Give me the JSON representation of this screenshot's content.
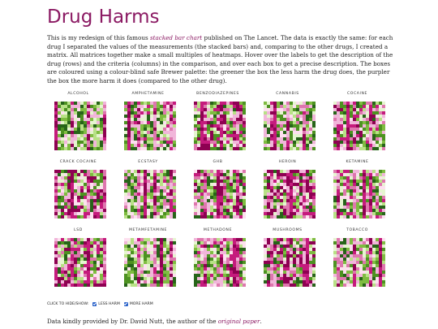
{
  "page": {
    "title": "Drug Harms",
    "intro": {
      "t1": "This is my redesign of this famous ",
      "link": "stacked bar chart",
      "t2": " published on The Lancet. The data is exactly the same: for each drug I separated the values of the measurements (the stacked bars) and, comparing to the other drugs, I created a matrix. All matrices together make a small multiples of heatmaps. Hover over the labels to get the description of the drug (rows) and the criteria (columns) in the comparison, and over each box to get a precise description. The boxes are coloured using a colour-blind safe Brewer palette: the greener the box the less harm the drug does, the purpler the box the more harm it does (compared to the other drug)."
    },
    "controls": {
      "hint": "CLICK TO HIDE/SHOW:",
      "less": "LESS HARM",
      "more": "MORE HARM"
    },
    "footer": {
      "t1": "Data kindly provided by Dr. David Nutt, the author of the ",
      "link": "original paper",
      "t2": "."
    }
  },
  "drugs": [
    "ALCOHOL",
    "AMPHETAMINE",
    "BENZODIAZEPINES",
    "CANNABIS",
    "COCAINE",
    "CRACK COCAINE",
    "ECSTASY",
    "GHB",
    "HEROIN",
    "KETAMINE",
    "LSD",
    "METAMFETAMINE",
    "METHADONE",
    "MUSHROOMS",
    "TOBACCO"
  ],
  "palette": {
    "more_harm_strong": "#8e0152",
    "more_harm": "#c51b7d",
    "more_harm_mid": "#de77ae",
    "more_harm_light": "#f1b6da",
    "more_harm_faint": "#fde0ef",
    "less_harm_faint": "#e6f5d0",
    "less_harm_light": "#b8e186",
    "less_harm_mid": "#7fbc41",
    "less_harm": "#4d9221",
    "less_harm_strong": "#276419"
  }
}
